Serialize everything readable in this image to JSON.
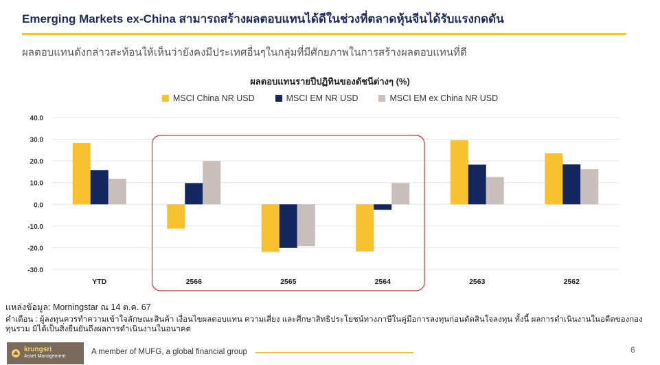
{
  "header": {
    "title": "Emerging Markets ex-China สามารถสร้างผลตอบแทนได้ดีในช่วงที่ตลาดหุ้นจีนได้รับแรงกดดัน",
    "subtitle": "ผลตอบแทนดังกล่าวสะท้อนให้เห็นว่ายังคงมีประเทศอื่นๆในกลุ่มที่มีศักยภาพในการสร้างผลตอบแทนที่ดี"
  },
  "chart_data": {
    "type": "bar",
    "title": "ผลตอบแทนรายปีปฏิทินของดัชนีต่างๆ (%)",
    "categories": [
      "YTD",
      "2566",
      "2565",
      "2564",
      "2563",
      "2562"
    ],
    "series": [
      {
        "name": "MSCI China NR USD",
        "color": "#f7c12f",
        "values": [
          28.3,
          -11.2,
          -21.9,
          -21.7,
          29.5,
          23.5
        ]
      },
      {
        "name": "MSCI EM NR USD",
        "color": "#14265e",
        "values": [
          15.8,
          9.8,
          -20.1,
          -2.5,
          18.3,
          18.4
        ]
      },
      {
        "name": "MSCI EM ex China NR USD",
        "color": "#c8bfbb",
        "values": [
          11.8,
          20.0,
          -19.3,
          9.8,
          12.6,
          16.2
        ]
      }
    ],
    "yticks": [
      "40.0",
      "30.0",
      "20.0",
      "10.0",
      "0.0",
      "-10.0",
      "-20.0",
      "-30.0"
    ],
    "ylim": [
      -30,
      40
    ],
    "grid": true,
    "legend": "top-center",
    "highlight": {
      "categories": [
        "2566",
        "2565",
        "2564"
      ],
      "color": "#d9302c"
    }
  },
  "source": "แหล่งข้อมูล: Morningstar ณ 14 ต.ค. 67",
  "disclaimer": "คำเตือน : ผู้ลงทุนควรทำความเข้าใจลักษณะสินค้า เงื่อนไขผลตอบแทน ความเสี่ยง และศึกษาสิทธิประโยชน์ทางภาษีในคู่มือการลงทุนก่อนตัดสินใจลงทุน ทั้งนี้ ผลการดำเนินงานในอดีตของกองทุนรวม มิได้เป็นสิ่งยืนยันถึงผลการดำเนินงานในอนาคต",
  "footer": {
    "logo_main": "krungsri",
    "logo_sub": "Asset Management",
    "member": "A member of MUFG, a global financial group",
    "page": "6"
  }
}
